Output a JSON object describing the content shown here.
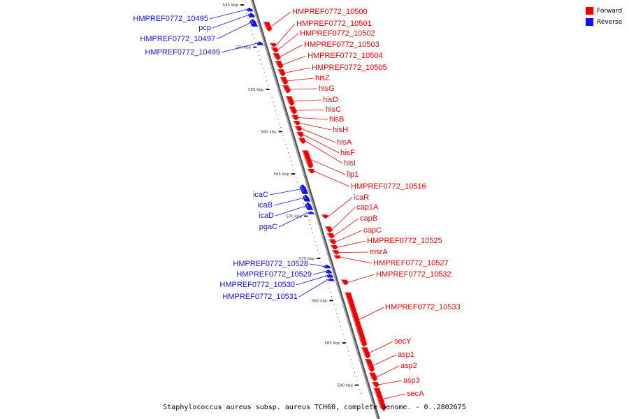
{
  "caption": "Staphylococcus aureus subsp. aureus TCH60, complete genome. - 0..2802675",
  "colors": {
    "forward": "#ee0000",
    "reverse": "#1010ee",
    "backbone": "#777777"
  },
  "legend": [
    {
      "label": "Forward",
      "strand": "forward"
    },
    {
      "label": "Reverse",
      "strand": "reverse"
    }
  ],
  "scale": {
    "start_kbp": 545,
    "end_kbp": 590,
    "step_kbp": 5,
    "unit": "kbp"
  },
  "scale_labels": [
    "545 kbp",
    "550 kbp",
    "555 kbp",
    "560 kbp",
    "565 kbp",
    "570 kbp",
    "575 kbp",
    "580 kbp",
    "585 kbp",
    "590 kbp"
  ],
  "genes": [
    {
      "name": "HMPREF0772_10495",
      "strand": "reverse",
      "start_kbp": 545.3,
      "end_kbp": 545.8
    },
    {
      "name": "pcp",
      "strand": "reverse",
      "start_kbp": 545.9,
      "end_kbp": 546.5
    },
    {
      "name": "HMPREF0772_10497",
      "strand": "reverse",
      "start_kbp": 546.6,
      "end_kbp": 547.6
    },
    {
      "name": "HMPREF0772_10499",
      "strand": "reverse",
      "start_kbp": 549.3,
      "end_kbp": 549.8
    },
    {
      "name": "HMPREF0772_10500",
      "strand": "forward",
      "start_kbp": 547.0,
      "end_kbp": 548.2
    },
    {
      "name": "HMPREF0772_10501",
      "strand": "forward",
      "start_kbp": 549.5,
      "end_kbp": 550.0
    },
    {
      "name": "HMPREF0772_10502",
      "strand": "forward",
      "start_kbp": 550.0,
      "end_kbp": 550.7
    },
    {
      "name": "HMPREF0772_10503",
      "strand": "forward",
      "start_kbp": 550.7,
      "end_kbp": 551.6
    },
    {
      "name": "HMPREF0772_10504",
      "strand": "forward",
      "start_kbp": 551.6,
      "end_kbp": 552.6
    },
    {
      "name": "HMPREF0772_10505",
      "strand": "forward",
      "start_kbp": 552.6,
      "end_kbp": 553.5
    },
    {
      "name": "hisZ",
      "strand": "forward",
      "start_kbp": 553.5,
      "end_kbp": 554.5
    },
    {
      "name": "hisG",
      "strand": "forward",
      "start_kbp": 554.5,
      "end_kbp": 555.5
    },
    {
      "name": "hisD",
      "strand": "forward",
      "start_kbp": 555.8,
      "end_kbp": 557.0
    },
    {
      "name": "hisC",
      "strand": "forward",
      "start_kbp": 557.0,
      "end_kbp": 558.0
    },
    {
      "name": "hisB",
      "strand": "forward",
      "start_kbp": 558.0,
      "end_kbp": 558.7
    },
    {
      "name": "hisH",
      "strand": "forward",
      "start_kbp": 558.7,
      "end_kbp": 559.3
    },
    {
      "name": "hisA",
      "strand": "forward",
      "start_kbp": 559.3,
      "end_kbp": 560.0
    },
    {
      "name": "hisF",
      "strand": "forward",
      "start_kbp": 560.0,
      "end_kbp": 560.7
    },
    {
      "name": "hisI",
      "strand": "forward",
      "start_kbp": 560.7,
      "end_kbp": 561.5
    },
    {
      "name": "lip1",
      "strand": "forward",
      "start_kbp": 562.2,
      "end_kbp": 564.4
    },
    {
      "name": "HMPREF0772_10516",
      "strand": "forward",
      "start_kbp": 564.4,
      "end_kbp": 565.0
    },
    {
      "name": "icaC",
      "strand": "reverse",
      "start_kbp": 566.2,
      "end_kbp": 567.4
    },
    {
      "name": "icaB",
      "strand": "reverse",
      "start_kbp": 567.4,
      "end_kbp": 568.3
    },
    {
      "name": "icaD",
      "strand": "reverse",
      "start_kbp": 568.3,
      "end_kbp": 569.3
    },
    {
      "name": "pgaC",
      "strand": "reverse",
      "start_kbp": 569.4,
      "end_kbp": 569.8
    },
    {
      "name": "icaR",
      "strand": "forward",
      "start_kbp": 569.8,
      "end_kbp": 570.3
    },
    {
      "name": "cap1A",
      "strand": "forward",
      "start_kbp": 571.2,
      "end_kbp": 572.0
    },
    {
      "name": "capB",
      "strand": "forward",
      "start_kbp": 572.0,
      "end_kbp": 572.7
    },
    {
      "name": "capC",
      "strand": "forward",
      "start_kbp": 572.7,
      "end_kbp": 573.4
    },
    {
      "name": "HMPREF0772_10525",
      "strand": "forward",
      "start_kbp": 573.4,
      "end_kbp": 574.0
    },
    {
      "name": "msrA",
      "strand": "forward",
      "start_kbp": 574.0,
      "end_kbp": 574.6
    },
    {
      "name": "HMPREF0772_10527",
      "strand": "forward",
      "start_kbp": 574.6,
      "end_kbp": 575.1
    },
    {
      "name": "HMPREF0772_10528",
      "strand": "reverse",
      "start_kbp": 575.7,
      "end_kbp": 576.2
    },
    {
      "name": "HMPREF0772_10529",
      "strand": "reverse",
      "start_kbp": 576.3,
      "end_kbp": 576.8
    },
    {
      "name": "HMPREF0772_10530",
      "strand": "reverse",
      "start_kbp": 576.8,
      "end_kbp": 577.3
    },
    {
      "name": "HMPREF0772_10531",
      "strand": "reverse",
      "start_kbp": 577.3,
      "end_kbp": 577.7
    },
    {
      "name": "HMPREF0772_10532",
      "strand": "forward",
      "start_kbp": 577.5,
      "end_kbp": 578.2
    },
    {
      "name": "HMPREF0772_10533",
      "strand": "forward",
      "start_kbp": 579.0,
      "end_kbp": 585.5
    },
    {
      "name": "secY",
      "strand": "forward",
      "start_kbp": 585.5,
      "end_kbp": 586.9
    },
    {
      "name": "asp1",
      "strand": "forward",
      "start_kbp": 586.9,
      "end_kbp": 588.5
    },
    {
      "name": "asp2",
      "strand": "forward",
      "start_kbp": 588.5,
      "end_kbp": 589.6
    },
    {
      "name": "asp3",
      "strand": "forward",
      "start_kbp": 589.6,
      "end_kbp": 590.3
    },
    {
      "name": "secA",
      "strand": "forward",
      "start_kbp": 590.3,
      "end_kbp": 593.0
    }
  ]
}
